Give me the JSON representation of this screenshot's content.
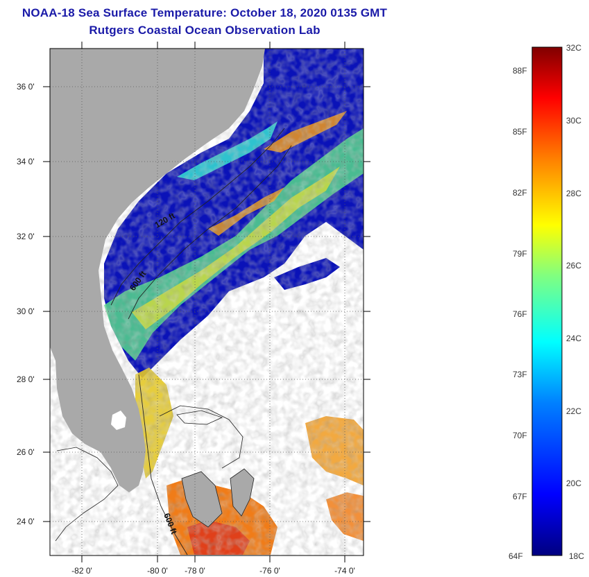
{
  "header": {
    "title": "NOAA-18 Sea Surface Temperature:  October 18, 2020 0135 GMT",
    "subtitle": "Rutgers Coastal Ocean Observation Lab"
  },
  "map": {
    "lat_labels": [
      "36 0'",
      "34 0'",
      "32 0'",
      "30 0'",
      "28 0'",
      "26 0'",
      "24 0'"
    ],
    "lon_labels": [
      "-82 0'",
      "-80 0'",
      "-78 0'",
      "-76 0'",
      "-74 0'"
    ],
    "contour_labels": [
      "120 ft",
      "600 ft",
      "600 ft"
    ],
    "land_color": "#a9a9a9",
    "ocean_deep_color": "#00008b",
    "cloud_color": "#ffffff"
  },
  "colorbar": {
    "fahrenheit_labels": [
      "88F",
      "85F",
      "82F",
      "79F",
      "76F",
      "73F",
      "70F",
      "67F",
      "64F"
    ],
    "celsius_labels": [
      "32C",
      "30C",
      "28C",
      "26C",
      "24C",
      "22C",
      "20C",
      "18C"
    ],
    "colors": [
      "#000080",
      "#0000ff",
      "#0080ff",
      "#00ffff",
      "#80ff80",
      "#ffff00",
      "#ff8000",
      "#ff0000",
      "#800000"
    ]
  }
}
